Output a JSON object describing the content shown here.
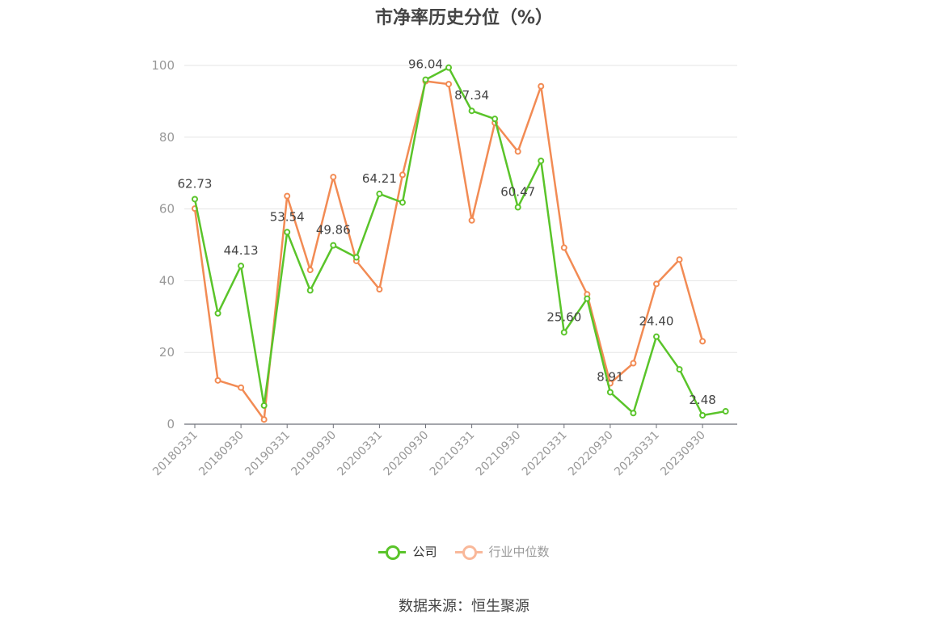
{
  "chart_data": {
    "type": "line",
    "title": "市净率历史分位（%）",
    "xlabel": "",
    "ylabel": "",
    "ylim": [
      0,
      100
    ],
    "yticks": [
      0,
      20,
      40,
      60,
      80,
      100
    ],
    "x": [
      "20180331",
      "20180630",
      "20180930",
      "20181231",
      "20190331",
      "20190630",
      "20190930",
      "20191231",
      "20200331",
      "20200630",
      "20200930",
      "20201231",
      "20210331",
      "20210630",
      "20210930",
      "20211231",
      "20220331",
      "20220630",
      "20220930",
      "20221231",
      "20230331",
      "20230630",
      "20230930",
      "20231231"
    ],
    "x_tick_labels": [
      "20180331",
      "20180930",
      "20190331",
      "20190930",
      "20200331",
      "20200930",
      "20210331",
      "20210930",
      "20220331",
      "20220930",
      "20230331",
      "20230930"
    ],
    "grid": true,
    "legend_position": "bottom",
    "series": [
      {
        "name": "公司",
        "color": "#5ac42a",
        "values": [
          62.73,
          30.9,
          44.13,
          5.2,
          53.54,
          37.3,
          49.86,
          46.5,
          64.21,
          61.8,
          96.04,
          99.4,
          87.34,
          85.1,
          60.47,
          73.4,
          25.6,
          35.0,
          8.91,
          3.1,
          24.4,
          15.3,
          2.48,
          3.6
        ]
      },
      {
        "name": "行业中位数",
        "color": "#f28b54",
        "values": [
          60.1,
          12.2,
          10.2,
          1.3,
          63.6,
          43.0,
          68.9,
          45.5,
          37.6,
          69.5,
          95.6,
          94.8,
          56.8,
          84.0,
          76.0,
          94.2,
          49.2,
          36.2,
          11.4,
          17.0,
          39.1,
          45.9,
          23.1,
          null
        ]
      }
    ],
    "data_labels": [
      {
        "index": 0,
        "text": "62.73"
      },
      {
        "index": 2,
        "text": "44.13"
      },
      {
        "index": 4,
        "text": "53.54"
      },
      {
        "index": 6,
        "text": "49.86"
      },
      {
        "index": 8,
        "text": "64.21"
      },
      {
        "index": 10,
        "text": "96.04"
      },
      {
        "index": 12,
        "text": "87.34"
      },
      {
        "index": 14,
        "text": "60.47"
      },
      {
        "index": 16,
        "text": "25.60"
      },
      {
        "index": 18,
        "text": "8.91"
      },
      {
        "index": 20,
        "text": "24.40"
      },
      {
        "index": 22,
        "text": "2.48"
      }
    ]
  },
  "legend": {
    "company": "公司",
    "industry": "行业中位数",
    "company_color": "#5ac42a",
    "industry_color": "#f9b89a"
  },
  "source": "数据来源：恒生聚源"
}
